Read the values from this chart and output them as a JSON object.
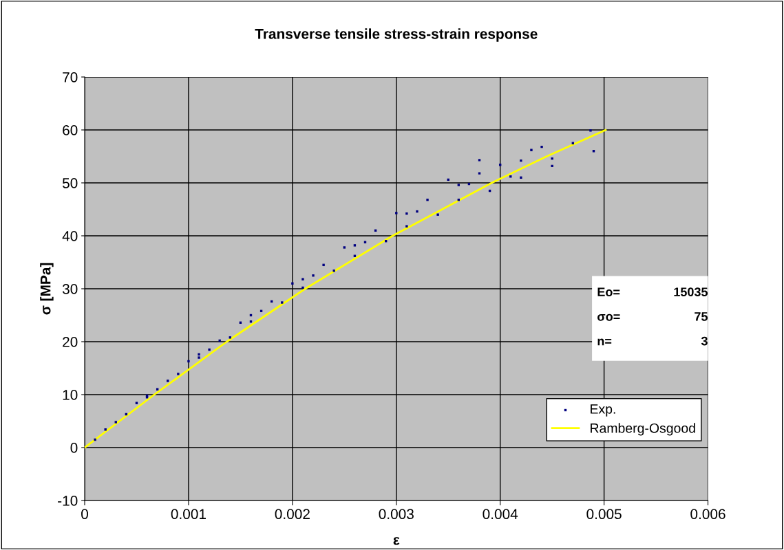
{
  "chart_data": {
    "type": "scatter",
    "title": "Transverse tensile stress-strain response",
    "xlabel": "ε",
    "ylabel": "σ [MPa]",
    "xlim": [
      0,
      0.006
    ],
    "xticks": [
      0,
      0.001,
      0.002,
      0.003,
      0.004,
      0.005,
      0.006
    ],
    "ylim": [
      -10,
      70
    ],
    "yticks": [
      -10,
      0,
      10,
      20,
      30,
      40,
      50,
      60,
      70
    ],
    "grid": true,
    "legend": "bottom right",
    "annotations": [
      "Eo=",
      "15035",
      "σo=",
      "75",
      "n=",
      "3"
    ],
    "series": [
      {
        "name": "Exp.",
        "type": "scatter",
        "color": "#000080",
        "marker": "square",
        "x": [
          0.0002,
          0.0005,
          0.001,
          0.0015,
          0.002,
          0.0025,
          0.003,
          0.0035,
          0.0038,
          0.0003,
          0.0008,
          0.0013,
          0.0018,
          0.0023,
          0.0028,
          0.0033,
          0.0038,
          0.0043,
          0.00487,
          0.0004,
          0.0009,
          0.0014,
          0.0019,
          0.0024,
          0.0029,
          0.0034,
          0.0039,
          0.0042,
          0.0045,
          0.0006,
          0.0011,
          0.0016,
          0.0021,
          0.0026,
          0.0031,
          0.0036,
          0.0041,
          0.0045,
          0.0049,
          0.0007,
          0.0012,
          0.0017,
          0.0022,
          0.0027,
          0.0032,
          0.0037,
          0.0042,
          0.0047,
          0.0001,
          0.0006,
          0.0011,
          0.0016,
          0.0021,
          0.0026,
          0.0031,
          0.0036,
          0.004,
          0.0044
        ],
        "values": [
          3.4,
          8.4,
          16.3,
          23.6,
          31,
          37.8,
          44.3,
          50.6,
          54.3,
          4.8,
          12.6,
          20.2,
          27.6,
          34.5,
          41,
          46.8,
          51.8,
          56.2,
          59.9,
          6.3,
          13.9,
          20.8,
          27.4,
          33.4,
          39,
          44,
          48.5,
          51,
          53.2,
          9.5,
          17,
          23.8,
          30.2,
          36.2,
          41.8,
          46.8,
          51.2,
          54.6,
          56,
          11,
          18.5,
          25.8,
          32.5,
          38.8,
          44.6,
          49.8,
          54.2,
          57.5,
          1.5,
          9.8,
          17.6,
          25,
          31.8,
          38.2,
          44.2,
          49.6,
          53.4,
          56.8
        ]
      },
      {
        "name": "Ramberg-Osgood",
        "type": "line",
        "color": "#ffff00",
        "marker": "none",
        "x": [
          0,
          0.00067,
          0.001368,
          0.002123,
          0.002964,
          0.003918,
          0.004447,
          0.005015
        ],
        "values": [
          0,
          10,
          20,
          30,
          40,
          50,
          55,
          60
        ]
      }
    ]
  }
}
